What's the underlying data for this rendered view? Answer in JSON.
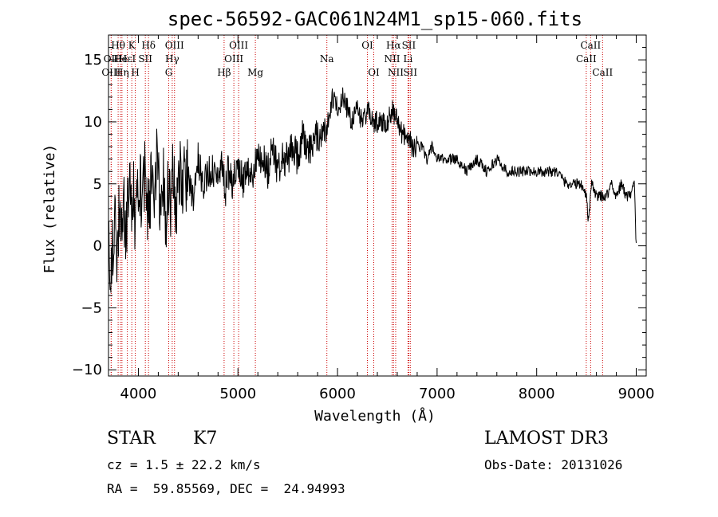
{
  "chart_data": {
    "type": "line",
    "title": "spec-56592-GAC061N24M1_sp15-060.fits",
    "xlabel": "Wavelength (Å)",
    "ylabel": "Flux (relative)",
    "xlim": [
      3700,
      9100
    ],
    "ylim": [
      -10.5,
      17
    ],
    "x_ticks": [
      4000,
      5000,
      6000,
      7000,
      8000,
      9000
    ],
    "y_ticks": [
      -10,
      -5,
      0,
      5,
      10,
      15
    ],
    "y_tick_labels": [
      "−10",
      "−5",
      "0",
      "5",
      "10",
      "15"
    ],
    "series": [
      {
        "name": "flux",
        "x": [
          3700,
          3730,
          3760,
          3790,
          3810,
          3830,
          3850,
          3870,
          3890,
          3910,
          3930,
          3950,
          3970,
          3990,
          4010,
          4040,
          4070,
          4100,
          4130,
          4160,
          4190,
          4220,
          4250,
          4280,
          4300,
          4330,
          4350,
          4380,
          4410,
          4450,
          4500,
          4550,
          4600,
          4650,
          4700,
          4750,
          4800,
          4850,
          4870,
          4900,
          4950,
          5000,
          5050,
          5100,
          5150,
          5200,
          5250,
          5300,
          5350,
          5400,
          5450,
          5500,
          5550,
          5600,
          5650,
          5700,
          5750,
          5800,
          5850,
          5900,
          5950,
          6000,
          6050,
          6100,
          6150,
          6200,
          6250,
          6300,
          6350,
          6400,
          6450,
          6500,
          6550,
          6600,
          6650,
          6700,
          6750,
          6800,
          6850,
          6900,
          6950,
          7000,
          7050,
          7100,
          7150,
          7200,
          7300,
          7400,
          7500,
          7600,
          7700,
          7800,
          7900,
          8000,
          8100,
          8200,
          8300,
          8400,
          8450,
          8500,
          8520,
          8550,
          8600,
          8650,
          8700,
          8750,
          8800,
          8850,
          8900,
          8950,
          8980,
          9000
        ],
        "y": [
          1,
          -2,
          3,
          -1,
          4,
          2,
          5,
          0,
          3,
          6,
          2,
          5,
          1,
          4,
          6,
          3,
          7,
          2,
          5,
          4,
          8,
          3,
          6,
          0,
          5,
          2,
          7,
          3,
          6,
          5,
          6,
          4,
          7,
          5,
          6,
          6,
          5,
          7,
          4,
          6,
          5,
          7,
          5,
          6,
          6,
          7,
          7,
          6,
          8,
          6,
          7,
          7,
          8,
          7,
          9,
          8,
          8,
          9,
          9,
          10,
          12,
          11,
          12,
          11,
          10,
          11,
          10,
          11,
          10,
          10,
          10,
          10,
          11,
          10,
          9,
          9,
          8,
          8,
          8,
          7,
          8,
          7,
          7,
          7,
          7,
          7,
          6,
          7,
          6,
          7,
          6,
          6,
          6,
          6,
          6,
          6,
          5,
          5,
          5,
          4,
          2,
          5,
          4,
          4,
          4,
          5,
          4,
          5,
          4,
          4,
          5,
          0
        ]
      }
    ],
    "spectral_lines": [
      {
        "label": "Hθ",
        "x": 3797,
        "row": 1
      },
      {
        "label": "OII",
        "x": 3727,
        "row": 2
      },
      {
        "label": "OIII",
        "x": 3727,
        "row": 3
      },
      {
        "label": "He",
        "x": 3820,
        "row": 2
      },
      {
        "label": "Hη",
        "x": 3835,
        "row": 3
      },
      {
        "label": "K",
        "x": 3934,
        "row": 1
      },
      {
        "label": "HεI",
        "x": 3889,
        "row": 2
      },
      {
        "label": "H",
        "x": 3969,
        "row": 3
      },
      {
        "label": "SII",
        "x": 4070,
        "row": 2
      },
      {
        "label": "Hδ",
        "x": 4102,
        "row": 1
      },
      {
        "label": "OIII",
        "x": 4363,
        "row": 1
      },
      {
        "label": "Hγ",
        "x": 4340,
        "row": 2
      },
      {
        "label": "G",
        "x": 4305,
        "row": 3
      },
      {
        "label": "OIII",
        "x": 5007,
        "row": 1
      },
      {
        "label": "OIII",
        "x": 4959,
        "row": 2
      },
      {
        "label": "Hβ",
        "x": 4861,
        "row": 3
      },
      {
        "label": "Mg",
        "x": 5175,
        "row": 3
      },
      {
        "label": "Na",
        "x": 5893,
        "row": 2
      },
      {
        "label": "OI",
        "x": 6300,
        "row": 1
      },
      {
        "label": "OI",
        "x": 6364,
        "row": 3
      },
      {
        "label": "Hα",
        "x": 6563,
        "row": 1
      },
      {
        "label": "SII",
        "x": 6716,
        "row": 1
      },
      {
        "label": "NII",
        "x": 6548,
        "row": 2
      },
      {
        "label": "Li",
        "x": 6708,
        "row": 2
      },
      {
        "label": "NII",
        "x": 6584,
        "row": 3
      },
      {
        "label": "SII",
        "x": 6731,
        "row": 3
      },
      {
        "label": "CaII",
        "x": 8542,
        "row": 1
      },
      {
        "label": "CaII",
        "x": 8498,
        "row": 2
      },
      {
        "label": "CaII",
        "x": 8662,
        "row": 3
      }
    ],
    "grid": false,
    "legend": "none"
  },
  "info": {
    "object_class": "STAR",
    "subclass": "K7",
    "survey": "LAMOST DR3",
    "cz": "cz = 1.5 ± 22.2 km/s",
    "obs_date": "Obs-Date: 20131026",
    "coords": "RA =  59.85569, DEC =  24.94993"
  },
  "colors": {
    "spectrum": "#000000",
    "lines": "#cc0000",
    "axes": "#000000"
  }
}
